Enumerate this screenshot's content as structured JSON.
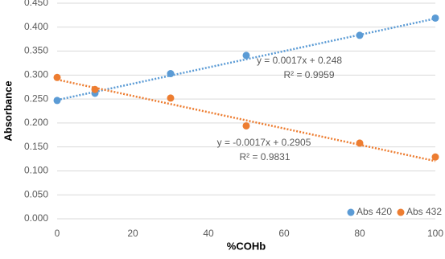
{
  "chart_data": {
    "type": "scatter",
    "x_label": "%COHb",
    "y_label": "Absorbance",
    "xlim": [
      0,
      100
    ],
    "xticks": [
      0,
      20,
      40,
      60,
      80,
      100
    ],
    "ylim": [
      0,
      0.45
    ],
    "yticks": [
      {
        "value": 0,
        "label": "0.000"
      },
      {
        "value": 0.05,
        "label": "0.050"
      },
      {
        "value": 0.1,
        "label": "0.100"
      },
      {
        "value": 0.15,
        "label": "0.150"
      },
      {
        "value": 0.2,
        "label": "0.200"
      },
      {
        "value": 0.25,
        "label": "0.250"
      },
      {
        "value": 0.3,
        "label": "0.300"
      },
      {
        "value": 0.35,
        "label": "0.350"
      },
      {
        "value": 0.4,
        "label": "0.400"
      },
      {
        "value": 0.45,
        "label": "0.450"
      }
    ],
    "grid": true,
    "legend": "bottom-right",
    "series": [
      {
        "name": "Abs 420",
        "color": "#5b9bd5",
        "x": [
          0,
          10,
          30,
          50,
          80,
          100
        ],
        "values": [
          0.247,
          0.262,
          0.303,
          0.341,
          0.383,
          0.419
        ],
        "trendline": {
          "slope": 0.0017,
          "intercept": 0.248,
          "equation": "y = 0.0017x + 0.248",
          "r2": "R² = 0.9959"
        }
      },
      {
        "name": "Abs 432",
        "color": "#ed7d31",
        "x": [
          0,
          10,
          30,
          50,
          80,
          100
        ],
        "values": [
          0.295,
          0.27,
          0.252,
          0.194,
          0.158,
          0.129
        ],
        "trendline": {
          "slope": -0.0017,
          "intercept": 0.2905,
          "equation": "y = -0.0017x + 0.2905",
          "r2": "R² = 0.9831"
        }
      }
    ]
  }
}
